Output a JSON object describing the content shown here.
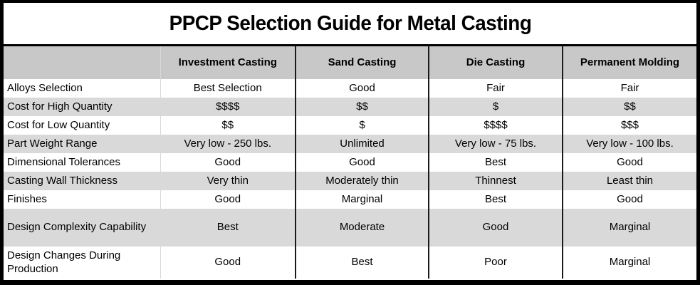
{
  "title": "PPCP Selection Guide for Metal Casting",
  "colors": {
    "border": "#000000",
    "header_fill": "#c8c8c8",
    "stripe_fill": "#d9d9d9",
    "text": "#000000",
    "background": "#ffffff"
  },
  "table": {
    "columns": [
      "",
      "Investment Casting",
      "Sand Casting",
      "Die Casting",
      "Permanent Molding"
    ],
    "rows": [
      {
        "label": "Alloys Selection",
        "values": [
          "Best Selection",
          "Good",
          "Fair",
          "Fair"
        ]
      },
      {
        "label": "Cost for High Quantity",
        "values": [
          "$$$$",
          "$$",
          "$",
          "$$"
        ]
      },
      {
        "label": "Cost for Low Quantity",
        "values": [
          "$$",
          "$",
          "$$$$",
          "$$$"
        ]
      },
      {
        "label": "Part Weight Range",
        "values": [
          "Very low - 250 lbs.",
          "Unlimited",
          "Very low - 75 lbs.",
          "Very low - 100 lbs."
        ]
      },
      {
        "label": "Dimensional Tolerances",
        "values": [
          "Good",
          "Good",
          "Best",
          "Good"
        ]
      },
      {
        "label": "Casting Wall Thickness",
        "values": [
          "Very thin",
          "Moderately thin",
          "Thinnest",
          "Least thin"
        ]
      },
      {
        "label": "Finishes",
        "values": [
          "Good",
          "Marginal",
          "Best",
          "Good"
        ]
      },
      {
        "label": "Design Complexity Capability",
        "values": [
          "Best",
          "Moderate",
          "Good",
          "Marginal"
        ]
      },
      {
        "label": "Design Changes During Production",
        "values": [
          "Good",
          "Best",
          "Poor",
          "Marginal"
        ]
      }
    ]
  }
}
